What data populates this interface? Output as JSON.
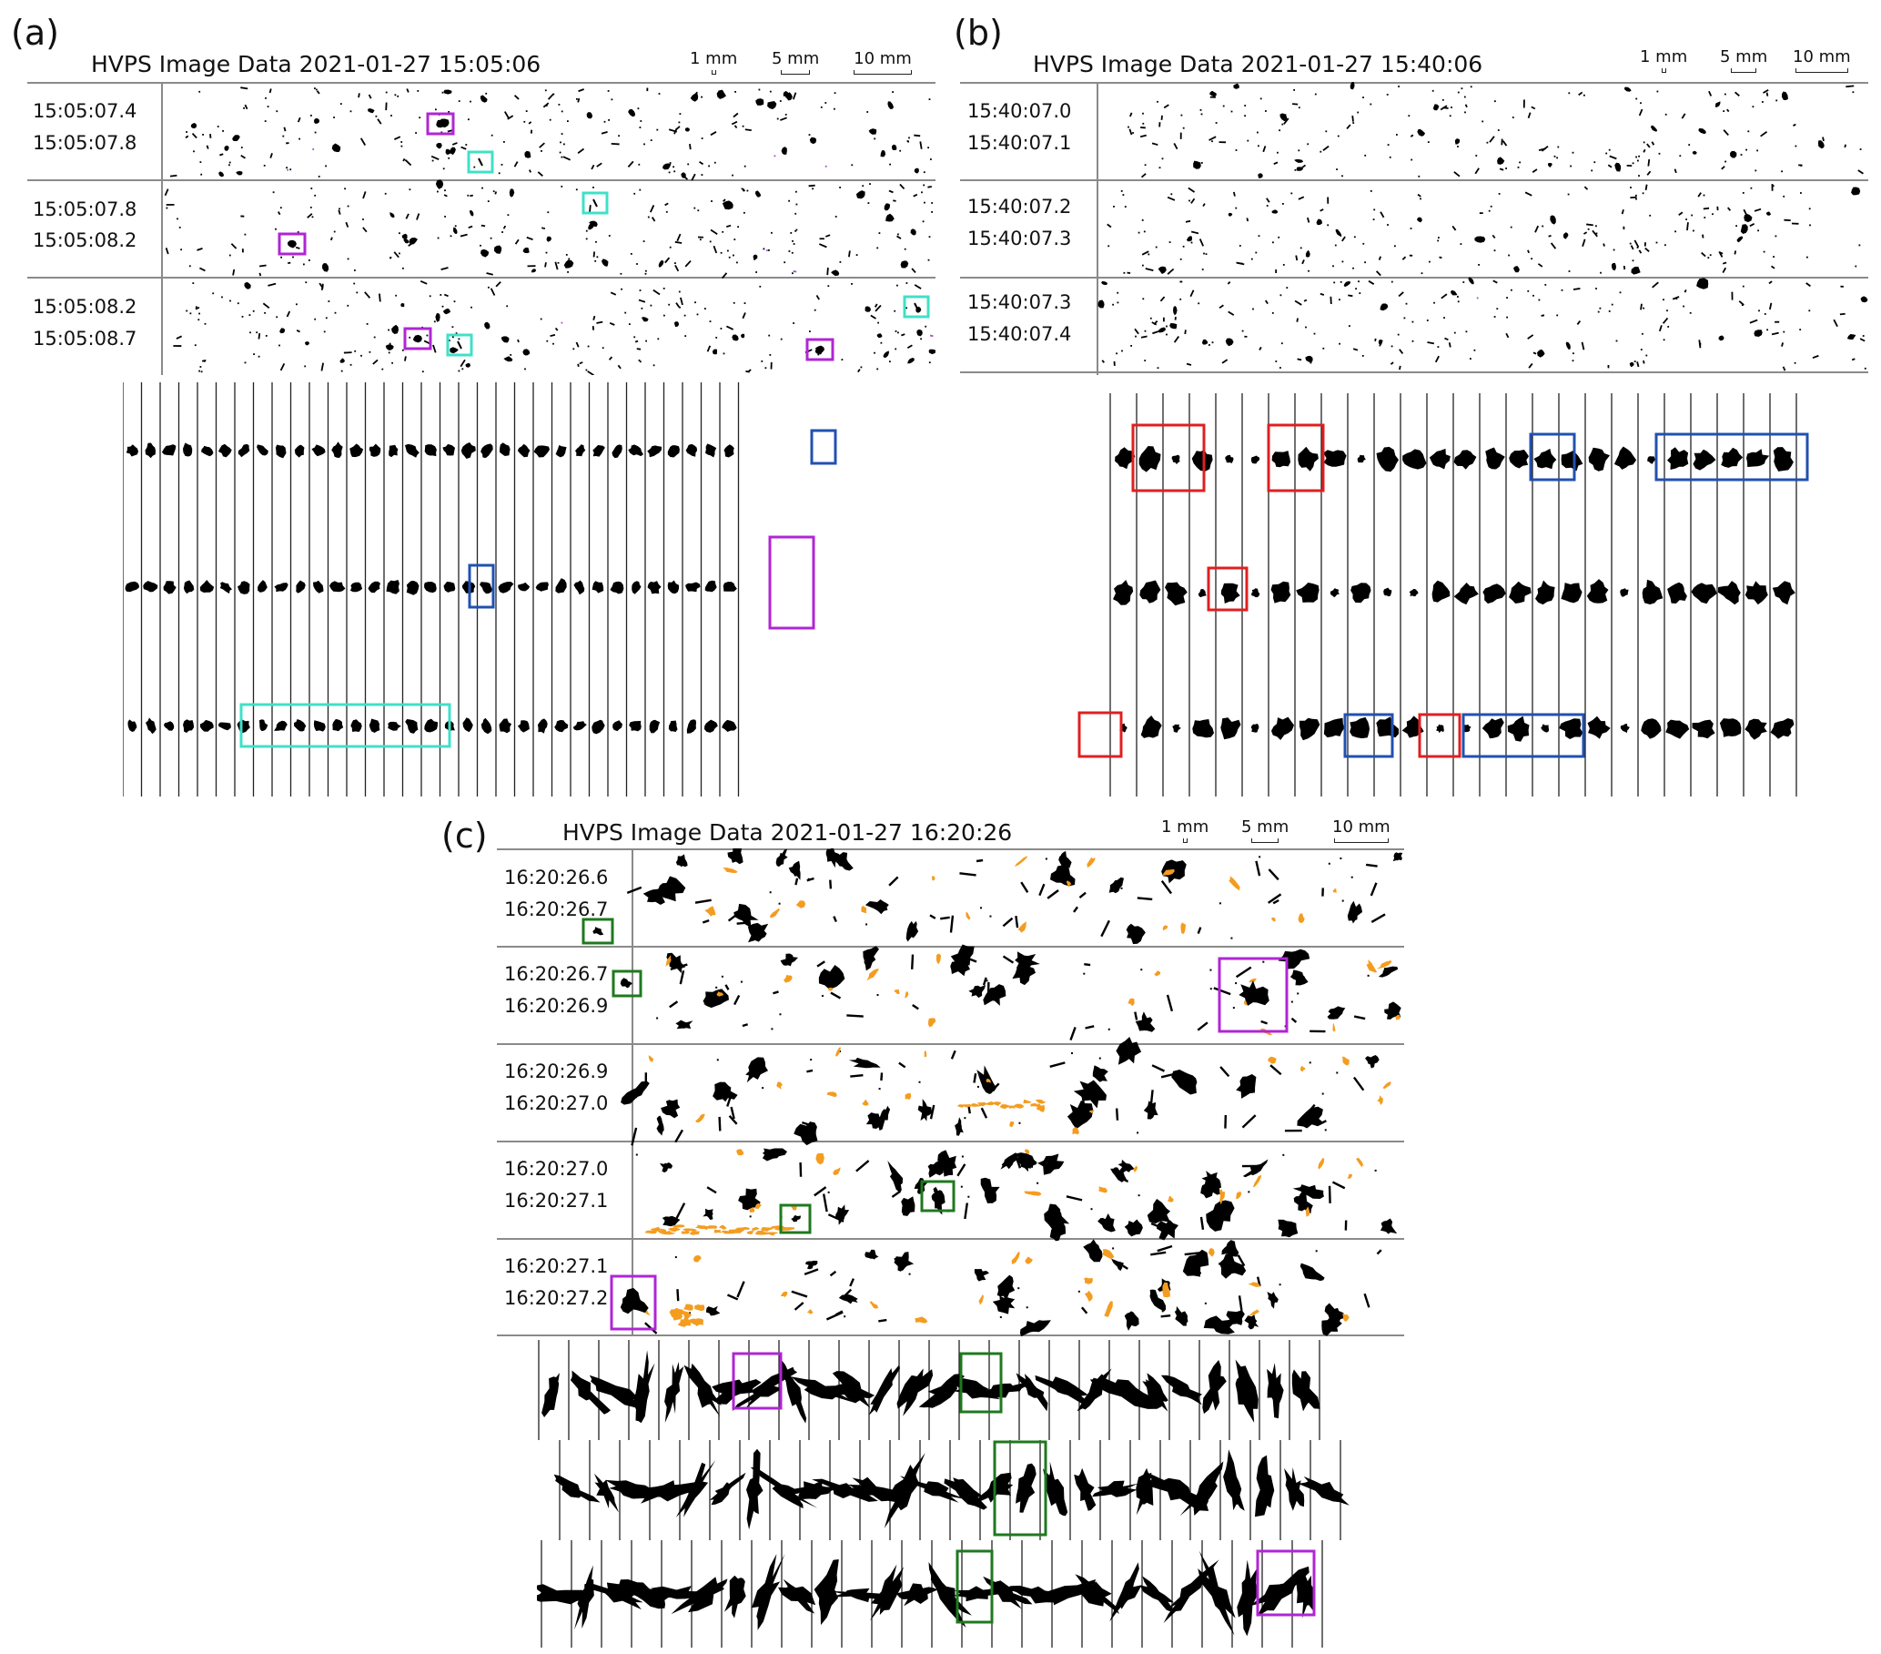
{
  "panel_a": {
    "letter": "(a)",
    "title": "HVPS Image Data 2021-01-27 15:05:06",
    "scale_labels": [
      "1 mm",
      "5 mm",
      "10 mm"
    ],
    "rows": [
      {
        "t1": "15:05:07.4",
        "t2": "15:05:07.8"
      },
      {
        "t1": "15:05:07.8",
        "t2": "15:05:08.2"
      },
      {
        "t1": "15:05:08.2",
        "t2": "15:05:08.7"
      }
    ]
  },
  "panel_b": {
    "letter": "(b)",
    "title": "HVPS Image Data 2021-01-27 15:40:06",
    "scale_labels": [
      "1 mm",
      "5 mm",
      "10 mm"
    ],
    "rows": [
      {
        "t1": "15:40:07.0",
        "t2": "15:40:07.1"
      },
      {
        "t1": "15:40:07.2",
        "t2": "15:40:07.3"
      },
      {
        "t1": "15:40:07.3",
        "t2": "15:40:07.4"
      }
    ]
  },
  "panel_c": {
    "letter": "(c)",
    "title": "HVPS Image Data 2021-01-27 16:20:26",
    "scale_labels": [
      "1 mm",
      "5 mm",
      "10 mm"
    ],
    "rows": [
      {
        "t1": "16:20:26.6",
        "t2": "16:20:26.7"
      },
      {
        "t1": "16:20:26.7",
        "t2": "16:20:26.9"
      },
      {
        "t1": "16:20:26.9",
        "t2": "16:20:27.0"
      },
      {
        "t1": "16:20:27.0",
        "t2": "16:20:27.1"
      },
      {
        "t1": "16:20:27.1",
        "t2": "16:20:27.2"
      }
    ]
  },
  "colors": {
    "particle": "#000000",
    "highlight_magenta": "#b026d6",
    "highlight_cyan": "#40e0c8",
    "highlight_blue": "#2050b0",
    "highlight_red": "#e02020",
    "highlight_green": "#1f7a1f",
    "shattered_orange": "#f39c1f",
    "divider": "#8a8a8a"
  }
}
